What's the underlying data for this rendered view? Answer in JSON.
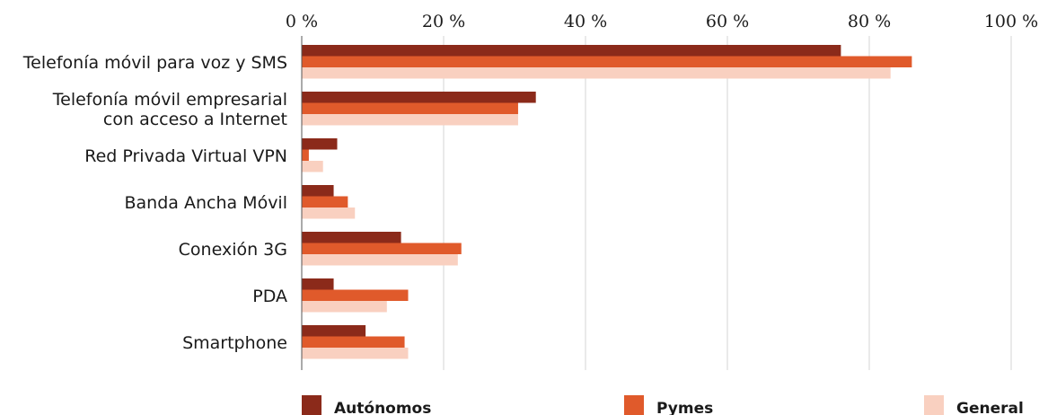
{
  "chart_data": {
    "type": "bar",
    "orientation": "horizontal",
    "title": "",
    "xlabel": "",
    "ylabel": "",
    "xlim": [
      0,
      100
    ],
    "x_ticks": [
      "0 %",
      "20 %",
      "40 %",
      "60 %",
      "80 %",
      "100 %"
    ],
    "x_axis_position": "top",
    "grid": true,
    "legend_position": "bottom",
    "categories": [
      [
        "Telefonía móvil para voz y SMS"
      ],
      [
        "Telefonía móvil empresarial",
        "con acceso a Internet"
      ],
      [
        "Red Privada Virtual VPN"
      ],
      [
        "Banda Ancha Móvil"
      ],
      [
        "Conexión 3G"
      ],
      [
        "PDA"
      ],
      [
        "Smartphone"
      ]
    ],
    "series": [
      {
        "name": "Autónomos",
        "color": "#8b2a1a",
        "values": [
          76,
          33,
          5,
          4.5,
          14,
          4.5,
          9
        ]
      },
      {
        "name": "Pymes",
        "color": "#e05a2b",
        "values": [
          86,
          30.5,
          1,
          6.5,
          22.5,
          15,
          14.5
        ]
      },
      {
        "name": "General",
        "color": "#f9d0c0",
        "values": [
          83,
          30.5,
          3,
          7.5,
          22,
          12,
          15
        ]
      }
    ]
  }
}
